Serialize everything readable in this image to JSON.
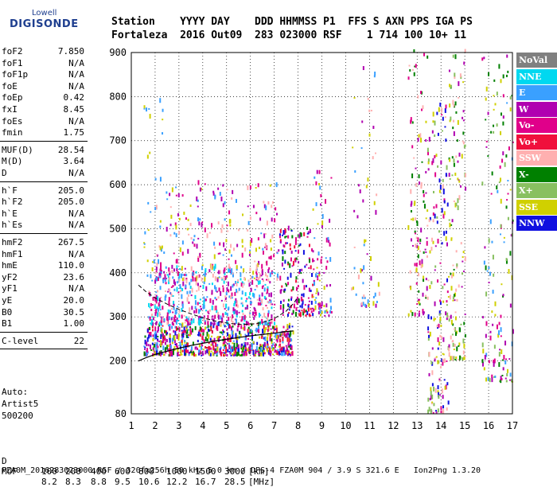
{
  "logo": {
    "top": "Lowell",
    "bottom": "DIGISONDE"
  },
  "header": {
    "columns": "Station    YYYY DAY    DDD HHMMSS P1  FFS S AXN PPS IGA PS",
    "values": "Fortaleza  2016 Out09  283 023000 RSF    1 714 100 10+ 11"
  },
  "params_group1": [
    {
      "label": "foF2",
      "value": "7.850"
    },
    {
      "label": "foF1",
      "value": "N/A"
    },
    {
      "label": "foF1p",
      "value": "N/A"
    },
    {
      "label": "foE",
      "value": "N/A"
    },
    {
      "label": "foEp",
      "value": "0.42"
    },
    {
      "label": "fxI",
      "value": "8.45"
    },
    {
      "label": "foEs",
      "value": "N/A"
    },
    {
      "label": "fmin",
      "value": "1.75"
    }
  ],
  "params_group2": [
    {
      "label": "MUF(D)",
      "value": "28.54"
    },
    {
      "label": "M(D)",
      "value": "3.64"
    },
    {
      "label": "D",
      "value": "N/A"
    }
  ],
  "params_group3": [
    {
      "label": "h`F",
      "value": "205.0"
    },
    {
      "label": "h`F2",
      "value": "205.0"
    },
    {
      "label": "h`E",
      "value": "N/A"
    },
    {
      "label": "h`Es",
      "value": "N/A"
    }
  ],
  "params_group4": [
    {
      "label": "hmF2",
      "value": "267.5"
    },
    {
      "label": "hmF1",
      "value": "N/A"
    },
    {
      "label": "hmE",
      "value": "110.0"
    },
    {
      "label": "yF2",
      "value": "23.6"
    },
    {
      "label": "yF1",
      "value": "N/A"
    },
    {
      "label": "yE",
      "value": "20.0"
    },
    {
      "label": "B0",
      "value": "30.5"
    },
    {
      "label": "B1",
      "value": "1.00"
    }
  ],
  "params_group5": [
    {
      "label": "C-level",
      "value": "22"
    }
  ],
  "auto": {
    "line1": "Auto:",
    "line2": "Artist5",
    "line3": "500200"
  },
  "legend": [
    {
      "label": "NoVal",
      "color": "#808080"
    },
    {
      "label": "NNE",
      "color": "#00d8f0"
    },
    {
      "label": "E",
      "color": "#3aa0ff"
    },
    {
      "label": "W",
      "color": "#b000b0"
    },
    {
      "label": "Vo-",
      "color": "#e0008a"
    },
    {
      "label": "Vo+",
      "color": "#f0103c"
    },
    {
      "label": "SSW",
      "color": "#ffb0b0"
    },
    {
      "label": "X-",
      "color": "#008000"
    },
    {
      "label": "X+",
      "color": "#88c060"
    },
    {
      "label": "SSE",
      "color": "#d0d000"
    },
    {
      "label": "NNW",
      "color": "#1010e0"
    }
  ],
  "footer": {
    "d_label": "D",
    "d_values": [
      "100",
      "200",
      "400",
      "600",
      "800",
      "1000",
      "1500",
      "3000",
      "[km]"
    ],
    "muf_label": "MUF",
    "muf_values": [
      "8.2",
      "8.3",
      "8.8",
      "9.5",
      "10.6",
      "12.2",
      "16.7",
      "28.5",
      "[MHz]"
    ],
    "info": "FZA0M_2016283023000.RSF / 320fx256h 50 kHz 5.0 km / DPS-4 FZA0M 904 / 3.9 S 321.6 E   Ion2Png 1.3.20"
  },
  "chart_data": {
    "type": "scatter",
    "xlim": [
      1,
      17
    ],
    "ylim": [
      80,
      900
    ],
    "x_ticks": [
      1,
      2,
      3,
      4,
      5,
      6,
      7,
      8,
      9,
      10,
      11,
      12,
      13,
      14,
      15,
      16,
      17
    ],
    "y_ticks": [
      80,
      200,
      300,
      400,
      500,
      600,
      700,
      800,
      900
    ],
    "grid": true,
    "trace_solid": {
      "x": [
        1.3,
        1.6,
        2.0,
        2.5,
        3.0,
        3.5,
        4.0,
        4.5,
        5.0,
        5.5,
        6.0,
        6.5,
        7.0,
        7.4,
        7.8
      ],
      "y": [
        200,
        207,
        215,
        222,
        229,
        235,
        240,
        245,
        249,
        253,
        257,
        260,
        263,
        266,
        268
      ]
    },
    "trace_dashed": {
      "x": [
        1.3,
        1.6,
        2.0,
        2.5,
        3.0,
        3.5,
        4.0,
        4.5,
        5.0,
        5.5,
        6.0,
        6.5,
        7.0,
        7.5,
        7.8,
        8.0
      ],
      "y": [
        372,
        358,
        343,
        329,
        317,
        307,
        298,
        291,
        286,
        283,
        283,
        287,
        296,
        313,
        330,
        345
      ]
    },
    "echo_regions": [
      {
        "x0": 1.5,
        "x1": 7.8,
        "ybase": 210,
        "yspan": 70,
        "count": 700,
        "colors": [
          "#f0103c",
          "#e0008a",
          "#b000b0",
          "#3aa0ff",
          "#d0d000",
          "#008000",
          "#1010e0"
        ]
      },
      {
        "x0": 1.7,
        "x1": 7.0,
        "ybase": 280,
        "yspan": 130,
        "count": 500,
        "colors": [
          "#3aa0ff",
          "#e0008a",
          "#b000b0",
          "#ffb0b0",
          "#00d8f0"
        ]
      },
      {
        "x0": 2.0,
        "x1": 7.2,
        "ybase": 380,
        "yspan": 220,
        "count": 260,
        "colors": [
          "#b000b0",
          "#ffb0b0",
          "#d0d000",
          "#e0008a",
          "#3aa0ff"
        ]
      },
      {
        "x0": 7.2,
        "x1": 8.6,
        "ybase": 300,
        "yspan": 200,
        "count": 160,
        "colors": [
          "#1010e0",
          "#e0008a",
          "#b000b0",
          "#008000",
          "#f0103c"
        ]
      },
      {
        "x0": 8.6,
        "x1": 9.4,
        "ybase": 300,
        "yspan": 330,
        "count": 80,
        "colors": [
          "#b000b0",
          "#d0d000",
          "#3aa0ff",
          "#e0008a"
        ]
      },
      {
        "x0": 10.2,
        "x1": 11.4,
        "ybase": 320,
        "yspan": 560,
        "count": 60,
        "colors": [
          "#b000b0",
          "#3aa0ff",
          "#ffb0b0",
          "#d0d000"
        ]
      },
      {
        "x0": 12.6,
        "x1": 13.4,
        "ybase": 300,
        "yspan": 600,
        "count": 110,
        "colors": [
          "#d0d000",
          "#b000b0",
          "#ffb0b0",
          "#e0008a",
          "#008000"
        ]
      },
      {
        "x0": 13.4,
        "x1": 14.3,
        "ybase": 80,
        "yspan": 700,
        "count": 180,
        "colors": [
          "#d0d000",
          "#1010e0",
          "#ffb0b0",
          "#e0008a",
          "#b000b0",
          "#88c060"
        ]
      },
      {
        "x0": 14.3,
        "x1": 15.0,
        "ybase": 200,
        "yspan": 700,
        "count": 140,
        "colors": [
          "#d0d000",
          "#b000b0",
          "#ffb0b0",
          "#008000",
          "#88c060"
        ]
      },
      {
        "x0": 15.7,
        "x1": 17.0,
        "ybase": 150,
        "yspan": 750,
        "count": 150,
        "colors": [
          "#008000",
          "#d0d000",
          "#b000b0",
          "#e0008a",
          "#88c060",
          "#3aa0ff"
        ]
      },
      {
        "x0": 1.5,
        "x1": 2.3,
        "ybase": 380,
        "yspan": 450,
        "count": 30,
        "colors": [
          "#d0d000",
          "#3aa0ff"
        ]
      }
    ]
  }
}
